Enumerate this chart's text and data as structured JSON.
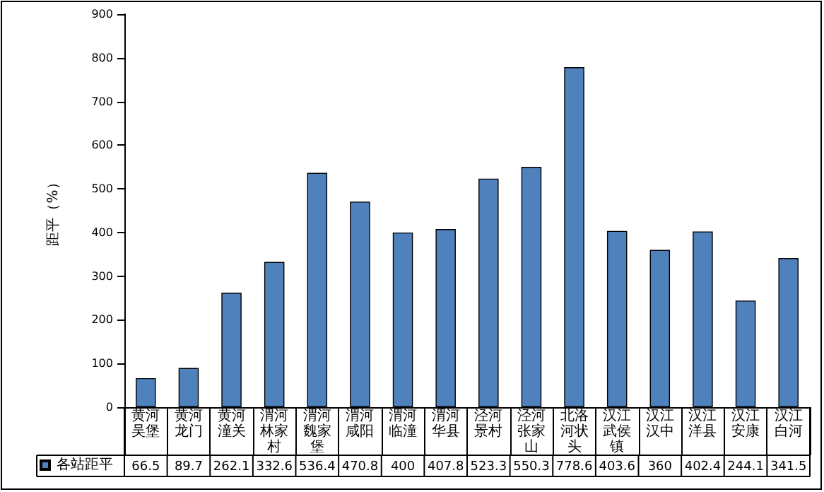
{
  "chart_data": {
    "type": "bar",
    "ylabel": "距平（%）",
    "categories": [
      "黄河吴堡",
      "黄河龙门",
      "黄河潼关",
      "渭河林家村",
      "渭河魏家堡",
      "渭河咸阳",
      "渭河临潼",
      "渭河华县",
      "泾河景村",
      "泾河张家山",
      "北洛河状头",
      "汉江武侯镇",
      "汉江汉中",
      "汉江洋县",
      "汉江安康",
      "汉江白河"
    ],
    "series": [
      {
        "name": "各站距平",
        "color": "#4f81bd",
        "values": [
          66.5,
          89.7,
          262.1,
          332.6,
          536.4,
          470.8,
          400,
          407.8,
          523.3,
          550.3,
          778.6,
          403.6,
          360,
          402.4,
          244.1,
          341.5
        ]
      }
    ],
    "ylim": [
      0,
      900
    ],
    "yticks": [
      0,
      100,
      200,
      300,
      400,
      500,
      600,
      700,
      800,
      900
    ],
    "grid": false,
    "legend": "bottom left",
    "data_labels": true
  }
}
